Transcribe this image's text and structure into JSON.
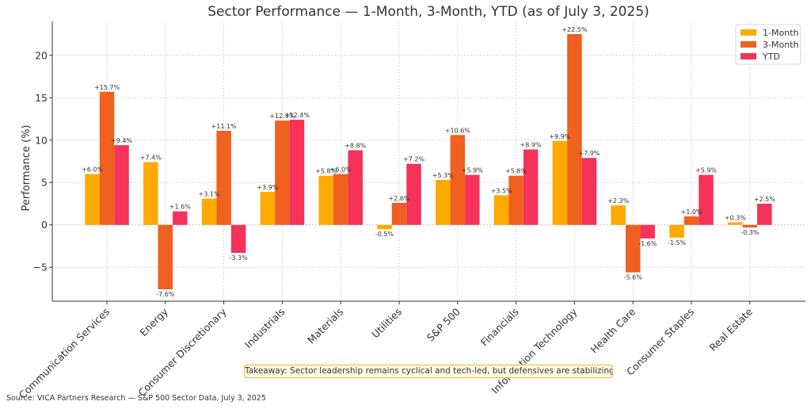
{
  "chart_data": {
    "type": "bar",
    "title": "Sector Performance — 1-Month, 3-Month, YTD (as of July 3, 2025)",
    "xlabel": "",
    "ylabel": "Performance (%)",
    "ylim": [
      -9.0,
      24.0
    ],
    "yticks": [
      -5,
      0,
      5,
      10,
      15,
      20
    ],
    "ytick_labels": [
      "−5",
      "0",
      "5",
      "10",
      "15",
      "20"
    ],
    "grid": true,
    "legend_position": "top-right",
    "categories": [
      "Communication Services",
      "Energy",
      "Consumer Discretionary",
      "Industrials",
      "Materials",
      "Utilities",
      "S&P 500",
      "Financials",
      "Information Technology",
      "Health Care",
      "Consumer Staples",
      "Real Estate"
    ],
    "series": [
      {
        "name": "1-Month",
        "color": "#ffaa00",
        "values": [
          6.0,
          7.4,
          3.1,
          3.9,
          5.8,
          -0.5,
          5.3,
          3.5,
          9.9,
          2.3,
          -1.5,
          0.3
        ],
        "labels": [
          "+6.0%",
          "+7.4%",
          "+3.1%",
          "+3.9%",
          "+5.8%",
          "-0.5%",
          "+5.3%",
          "+3.5%",
          "+9.9%",
          "+2.3%",
          "-1.5%",
          "+0.3%"
        ]
      },
      {
        "name": "3-Month",
        "color": "#f0601e",
        "values": [
          15.7,
          -7.6,
          11.1,
          12.3,
          6.0,
          2.6,
          10.6,
          5.8,
          22.5,
          -5.6,
          1.0,
          -0.3
        ],
        "labels": [
          "+15.7%",
          "-7.6%",
          "+11.1%",
          "+12.3%",
          "+6.0%",
          "+2.6%",
          "+10.6%",
          "+5.8%",
          "+22.5%",
          "-5.6%",
          "+1.0%",
          "-0.3%"
        ]
      },
      {
        "name": "YTD",
        "color": "#f5325a",
        "values": [
          9.4,
          1.6,
          -3.3,
          12.4,
          8.8,
          7.2,
          5.9,
          8.9,
          7.9,
          -1.6,
          5.9,
          2.5
        ],
        "labels": [
          "+9.4%",
          "+1.6%",
          "-3.3%",
          "+12.4%",
          "+8.8%",
          "+7.2%",
          "+5.9%",
          "+8.9%",
          "+7.9%",
          "-1.6%",
          "+5.9%",
          "+2.5%"
        ]
      }
    ]
  },
  "footer": {
    "takeaway": "Takeaway: Sector leadership remains cyclical and tech-led, but defensives are stabilizing.",
    "source": "Source: VICA Partners Research — S&P 500 Sector Data, July 3, 2025"
  }
}
